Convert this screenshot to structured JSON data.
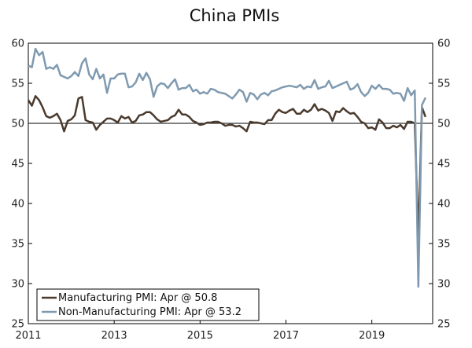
{
  "chart_data": {
    "type": "line",
    "title": "China PMIs",
    "x_start": "2011-01",
    "x_range": [
      "2011-01",
      "2020-06"
    ],
    "x_ticks": [
      "2011",
      "2013",
      "2015",
      "2017",
      "2019"
    ],
    "ylim": [
      25,
      60
    ],
    "y_ticks": [
      25,
      30,
      35,
      40,
      45,
      50,
      55,
      60
    ],
    "y_axis_both_sides": true,
    "reference_line": 50,
    "grid": false,
    "legend_position": "bottom-left",
    "series": [
      {
        "name": "Manufacturing PMI: Apr @ 50.8",
        "color": "#4a3a2d",
        "values": [
          52.9,
          52.2,
          53.4,
          52.9,
          52.0,
          50.9,
          50.7,
          50.9,
          51.2,
          50.4,
          49.0,
          50.3,
          50.5,
          51.0,
          53.1,
          53.3,
          50.4,
          50.2,
          50.1,
          49.2,
          49.8,
          50.2,
          50.6,
          50.6,
          50.4,
          50.1,
          50.9,
          50.6,
          50.8,
          50.1,
          50.3,
          51.0,
          51.1,
          51.4,
          51.4,
          51.0,
          50.5,
          50.2,
          50.3,
          50.4,
          50.8,
          51.0,
          51.7,
          51.1,
          51.1,
          50.8,
          50.3,
          50.1,
          49.8,
          49.9,
          50.1,
          50.1,
          50.2,
          50.2,
          50.0,
          49.7,
          49.8,
          49.8,
          49.6,
          49.7,
          49.4,
          49.0,
          50.2,
          50.1,
          50.1,
          50.0,
          49.9,
          50.4,
          50.4,
          51.2,
          51.7,
          51.4,
          51.3,
          51.6,
          51.8,
          51.2,
          51.2,
          51.7,
          51.4,
          51.7,
          52.4,
          51.6,
          51.8,
          51.6,
          51.3,
          50.3,
          51.5,
          51.4,
          51.9,
          51.5,
          51.2,
          51.3,
          50.8,
          50.2,
          50.0,
          49.4,
          49.5,
          49.2,
          50.5,
          50.1,
          49.4,
          49.4,
          49.7,
          49.5,
          49.8,
          49.3,
          50.2,
          50.2,
          50.0,
          35.7,
          52.0,
          50.8
        ]
      },
      {
        "name": "Non-Manufacturing PMI: Apr @ 53.2",
        "color": "#7f9ab0",
        "values": [
          57.2,
          57.0,
          59.3,
          58.5,
          58.9,
          56.8,
          57.0,
          56.8,
          57.3,
          56.0,
          55.8,
          55.6,
          55.9,
          56.4,
          55.9,
          57.5,
          58.1,
          56.1,
          55.5,
          56.8,
          55.6,
          56.1,
          53.8,
          55.6,
          55.6,
          56.1,
          56.2,
          56.2,
          54.5,
          54.6,
          55.1,
          56.2,
          55.4,
          56.3,
          55.5,
          53.3,
          54.6,
          55.0,
          54.9,
          54.4,
          55.0,
          55.5,
          54.2,
          54.4,
          54.4,
          54.8,
          54.0,
          54.2,
          53.7,
          53.9,
          53.7,
          54.3,
          54.2,
          53.9,
          53.8,
          53.7,
          53.4,
          53.1,
          53.6,
          54.2,
          53.9,
          52.7,
          53.8,
          53.6,
          53.0,
          53.6,
          53.8,
          53.5,
          54.0,
          54.1,
          54.3,
          54.5,
          54.6,
          54.7,
          54.6,
          54.5,
          54.8,
          54.3,
          54.6,
          54.5,
          55.4,
          54.3,
          54.5,
          54.6,
          55.3,
          54.4,
          54.6,
          54.8,
          55.0,
          55.2,
          54.2,
          54.4,
          54.9,
          53.9,
          53.4,
          53.8,
          54.7,
          54.3,
          54.8,
          54.3,
          54.3,
          54.2,
          53.7,
          53.8,
          53.7,
          52.8,
          54.4,
          53.5,
          54.1,
          29.6,
          52.3,
          53.2
        ]
      }
    ]
  }
}
